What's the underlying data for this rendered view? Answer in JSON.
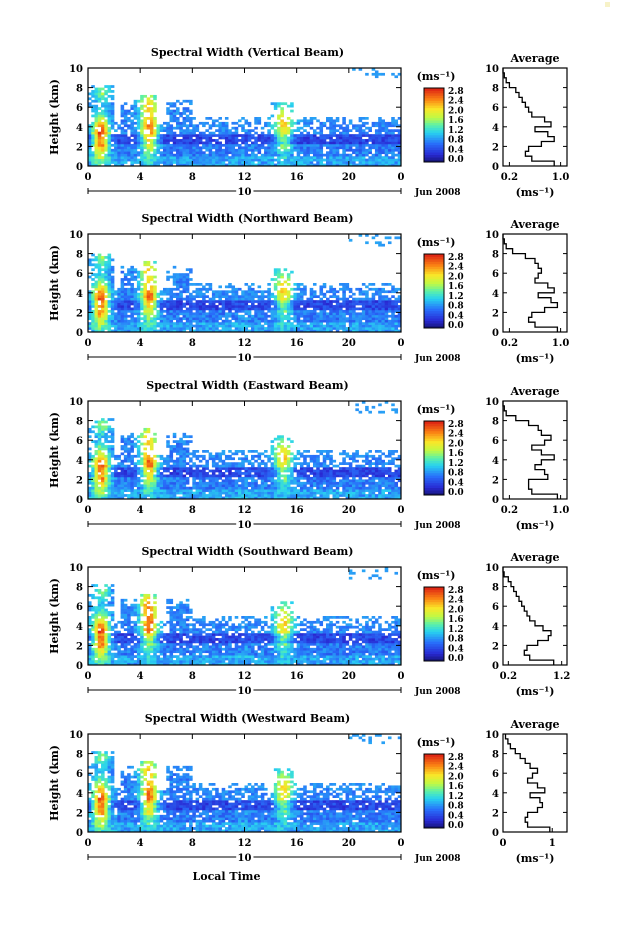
{
  "figure": {
    "xlabel": "Local Time",
    "ylabel": "Height (km)",
    "date_label": "Jun 2008",
    "day_label": "10",
    "colorbar_unit": "(ms⁻¹)",
    "colorbar_ticks": [
      "2.8",
      "2.4",
      "2.0",
      "1.6",
      "1.2",
      "0.8",
      "0.4",
      "0.0"
    ],
    "average_title": "Average",
    "average_xlabel": "(ms⁻¹)"
  },
  "chart_data": [
    {
      "type": "heatmap",
      "title": "Spectral Width (Vertical Beam)",
      "xlabel": "Local Time",
      "ylabel": "Height (km)",
      "xlim": [
        0,
        24
      ],
      "ylim": [
        0,
        10
      ],
      "x_ticks": [
        "0",
        "4",
        "8",
        "12",
        "16",
        "20",
        "0"
      ],
      "y_ticks": [
        "0",
        "2",
        "4",
        "6",
        "8",
        "10"
      ],
      "colorbar": {
        "label": "(ms⁻¹)",
        "range": [
          0.0,
          3.0
        ],
        "ticks": [
          "2.8",
          "2.4",
          "2.0",
          "1.6",
          "1.2",
          "0.8",
          "0.4",
          "0.0"
        ]
      },
      "features": [
        {
          "x": 1.0,
          "y": 3.0,
          "value": 2.6
        },
        {
          "x": 4.7,
          "y": 3.5,
          "value": 2.4
        },
        {
          "x": 15.0,
          "y": 3.5,
          "value": 1.6
        },
        {
          "x": 12.0,
          "y": 1.5,
          "value": 0.6
        }
      ],
      "average_profile": {
        "title": "Average",
        "xlabel": "(ms⁻¹)",
        "x_ticks": [
          "0.2",
          "1.0"
        ],
        "xlim": [
          0.1,
          1.1
        ],
        "height": [
          0,
          0.5,
          1,
          1.5,
          2,
          2.5,
          3,
          3.5,
          4,
          4.5,
          5,
          5.5,
          6,
          6.5,
          7,
          7.5,
          8,
          8.5,
          9,
          9.5,
          10
        ],
        "value": [
          0.9,
          0.55,
          0.45,
          0.5,
          0.7,
          0.9,
          0.8,
          0.6,
          0.85,
          0.75,
          0.55,
          0.5,
          0.45,
          0.4,
          0.35,
          0.3,
          0.2,
          0.15,
          0.12,
          0.1,
          0.1
        ]
      }
    },
    {
      "type": "heatmap",
      "title": "Spectral Width (Northward Beam)",
      "xlabel": "Local Time",
      "ylabel": "Height (km)",
      "xlim": [
        0,
        24
      ],
      "ylim": [
        0,
        10
      ],
      "x_ticks": [
        "0",
        "4",
        "8",
        "12",
        "16",
        "20",
        "0"
      ],
      "y_ticks": [
        "0",
        "2",
        "4",
        "6",
        "8",
        "10"
      ],
      "colorbar": {
        "label": "(ms⁻¹)",
        "range": [
          0.0,
          3.0
        ],
        "ticks": [
          "2.8",
          "2.4",
          "2.0",
          "1.6",
          "1.2",
          "0.8",
          "0.4",
          "0.0"
        ]
      },
      "features": [
        {
          "x": 1.0,
          "y": 3.0,
          "value": 2.6
        },
        {
          "x": 4.7,
          "y": 3.5,
          "value": 2.4
        },
        {
          "x": 15.0,
          "y": 3.5,
          "value": 1.6
        },
        {
          "x": 12.0,
          "y": 1.5,
          "value": 0.6
        }
      ],
      "average_profile": {
        "title": "Average",
        "xlabel": "(ms⁻¹)",
        "x_ticks": [
          "0.2",
          "1.0"
        ],
        "xlim": [
          0.1,
          1.1
        ],
        "height": [
          0,
          0.5,
          1,
          1.5,
          2,
          2.5,
          3,
          3.5,
          4,
          4.5,
          5,
          5.5,
          6,
          6.5,
          7,
          7.5,
          8,
          8.5,
          9,
          9.5,
          10
        ],
        "value": [
          0.95,
          0.6,
          0.5,
          0.55,
          0.75,
          0.95,
          0.85,
          0.65,
          0.9,
          0.8,
          0.6,
          0.65,
          0.7,
          0.65,
          0.6,
          0.45,
          0.25,
          0.15,
          0.12,
          0.1,
          0.1
        ]
      }
    },
    {
      "type": "heatmap",
      "title": "Spectral Width (Eastward Beam)",
      "xlabel": "Local Time",
      "ylabel": "Height (km)",
      "xlim": [
        0,
        24
      ],
      "ylim": [
        0,
        10
      ],
      "x_ticks": [
        "0",
        "4",
        "8",
        "12",
        "16",
        "20",
        "0"
      ],
      "y_ticks": [
        "0",
        "2",
        "4",
        "6",
        "8",
        "10"
      ],
      "colorbar": {
        "label": "(ms⁻¹)",
        "range": [
          0.0,
          3.0
        ],
        "ticks": [
          "2.8",
          "2.4",
          "2.0",
          "1.6",
          "1.2",
          "0.8",
          "0.4",
          "0.0"
        ]
      },
      "features": [
        {
          "x": 1.0,
          "y": 3.0,
          "value": 2.6
        },
        {
          "x": 4.7,
          "y": 3.5,
          "value": 2.4
        },
        {
          "x": 15.0,
          "y": 3.5,
          "value": 1.6
        },
        {
          "x": 12.0,
          "y": 1.5,
          "value": 0.6
        }
      ],
      "average_profile": {
        "title": "Average",
        "xlabel": "(ms⁻¹)",
        "x_ticks": [
          "0.2",
          "1.0"
        ],
        "xlim": [
          0.1,
          1.1
        ],
        "height": [
          0,
          0.5,
          1,
          1.5,
          2,
          2.5,
          3,
          3.5,
          4,
          4.5,
          5,
          5.5,
          6,
          6.5,
          7,
          7.5,
          8,
          8.5,
          9,
          9.5,
          10
        ],
        "value": [
          0.95,
          0.55,
          0.5,
          0.5,
          0.8,
          0.75,
          0.6,
          0.7,
          0.9,
          0.7,
          0.55,
          0.75,
          0.85,
          0.7,
          0.65,
          0.5,
          0.3,
          0.15,
          0.12,
          0.1,
          0.1
        ]
      }
    },
    {
      "type": "heatmap",
      "title": "Spectral Width (Southward Beam)",
      "xlabel": "Local Time",
      "ylabel": "Height (km)",
      "xlim": [
        0,
        24
      ],
      "ylim": [
        0,
        10
      ],
      "x_ticks": [
        "0",
        "4",
        "8",
        "12",
        "16",
        "20",
        "0"
      ],
      "y_ticks": [
        "0",
        "2",
        "4",
        "6",
        "8",
        "10"
      ],
      "colorbar": {
        "label": "(ms⁻¹)",
        "range": [
          0.0,
          3.0
        ],
        "ticks": [
          "2.8",
          "2.4",
          "2.0",
          "1.6",
          "1.2",
          "0.8",
          "0.4",
          "0.0"
        ]
      },
      "features": [
        {
          "x": 1.0,
          "y": 3.0,
          "value": 2.6
        },
        {
          "x": 4.7,
          "y": 4.0,
          "value": 2.4
        },
        {
          "x": 15.0,
          "y": 3.5,
          "value": 1.6
        },
        {
          "x": 12.0,
          "y": 1.5,
          "value": 0.6
        }
      ],
      "average_profile": {
        "title": "Average",
        "xlabel": "(ms⁻¹)",
        "x_ticks": [
          "0.2",
          "1.2"
        ],
        "xlim": [
          0.1,
          1.3
        ],
        "height": [
          0,
          0.5,
          1,
          1.5,
          2,
          2.5,
          3,
          3.5,
          4,
          4.5,
          5,
          5.5,
          6,
          6.5,
          7,
          7.5,
          8,
          8.5,
          9,
          9.5,
          10
        ],
        "value": [
          1.05,
          0.6,
          0.5,
          0.55,
          0.75,
          0.95,
          1.0,
          0.85,
          0.7,
          0.6,
          0.55,
          0.5,
          0.45,
          0.4,
          0.35,
          0.3,
          0.25,
          0.2,
          0.12,
          0.1,
          0.1
        ]
      }
    },
    {
      "type": "heatmap",
      "title": "Spectral Width (Westward Beam)",
      "xlabel": "Local Time",
      "ylabel": "Height (km)",
      "xlim": [
        0,
        24
      ],
      "ylim": [
        0,
        10
      ],
      "x_ticks": [
        "0",
        "4",
        "8",
        "12",
        "16",
        "20",
        "0"
      ],
      "y_ticks": [
        "0",
        "2",
        "4",
        "6",
        "8",
        "10"
      ],
      "colorbar": {
        "label": "(ms⁻¹)",
        "range": [
          0.0,
          3.0
        ],
        "ticks": [
          "2.8",
          "2.4",
          "2.0",
          "1.6",
          "1.2",
          "0.8",
          "0.4",
          "0.0"
        ]
      },
      "features": [
        {
          "x": 1.0,
          "y": 3.0,
          "value": 2.6
        },
        {
          "x": 4.7,
          "y": 3.5,
          "value": 2.4
        },
        {
          "x": 15.0,
          "y": 3.5,
          "value": 1.6
        },
        {
          "x": 12.0,
          "y": 1.5,
          "value": 0.6
        }
      ],
      "average_profile": {
        "title": "Average",
        "xlabel": "(ms⁻¹)",
        "x_ticks": [
          "0",
          "1"
        ],
        "xlim": [
          0,
          1.3
        ],
        "height": [
          0,
          0.5,
          1,
          1.5,
          2,
          2.5,
          3,
          3.5,
          4,
          4.5,
          5,
          5.5,
          6,
          6.5,
          7,
          7.5,
          8,
          8.5,
          9,
          9.5,
          10
        ],
        "value": [
          0.95,
          0.5,
          0.45,
          0.5,
          0.7,
          0.8,
          0.75,
          0.55,
          0.85,
          0.7,
          0.5,
          0.6,
          0.7,
          0.55,
          0.45,
          0.35,
          0.25,
          0.15,
          0.1,
          0.05,
          0.05
        ]
      }
    }
  ]
}
